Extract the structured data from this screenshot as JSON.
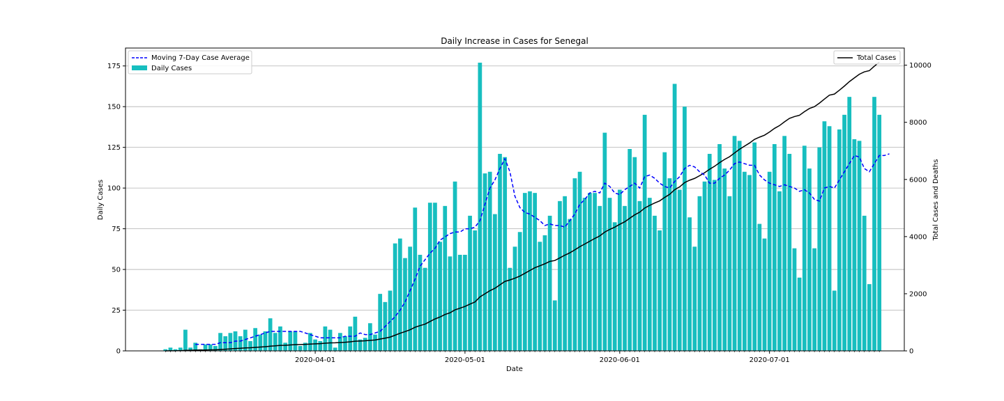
{
  "chart_data": {
    "type": "bar",
    "title": "Daily Increase in Cases for Senegal",
    "xlabel": "Date",
    "ylabel": "Daily Cases",
    "y2label": "Total Cases and Deaths",
    "ylim": [
      0,
      186
    ],
    "y2lim": [
      0,
      10600
    ],
    "yticks": [
      0,
      25,
      50,
      75,
      100,
      125,
      150,
      175
    ],
    "y2ticks": [
      0,
      2000,
      4000,
      6000,
      8000,
      10000
    ],
    "start_date": "2020-03-02",
    "xlim_days": [
      -8,
      148
    ],
    "date_ticks": [
      {
        "label": "2020-04-01",
        "day": 30
      },
      {
        "label": "2020-05-01",
        "day": 60
      },
      {
        "label": "2020-06-01",
        "day": 91
      },
      {
        "label": "2020-07-01",
        "day": 121
      }
    ],
    "grid": "horizontal",
    "legend_left": {
      "position": "top-left",
      "items": [
        "Moving 7-Day Case Average",
        "Daily Cases"
      ]
    },
    "legend_right": {
      "position": "top-right",
      "items": [
        "Total Cases"
      ]
    },
    "colors": {
      "bars": "#17bebf",
      "average": "#0000ff",
      "total": "#000000",
      "grid": "#b0b0b0"
    },
    "series": [
      {
        "name": "Daily Cases",
        "type": "bar",
        "axis": "left",
        "values": [
          1,
          2,
          1,
          2,
          13,
          2,
          5,
          1,
          4,
          4,
          3,
          11,
          9,
          11,
          12,
          9,
          13,
          6,
          14,
          10,
          12,
          20,
          11,
          15,
          5,
          12,
          12,
          3,
          5,
          11,
          7,
          6,
          15,
          13,
          2,
          11,
          9,
          15,
          21,
          7,
          8,
          17,
          10,
          35,
          30,
          37,
          66,
          69,
          57,
          64,
          88,
          59,
          51,
          91,
          91,
          67,
          89,
          58,
          104,
          59,
          59,
          83,
          74,
          177,
          109,
          110,
          84,
          121,
          119,
          51,
          64,
          73,
          97,
          98,
          97,
          67,
          71,
          83,
          31,
          92,
          95,
          81,
          106,
          110,
          94,
          97,
          97,
          89,
          134,
          94,
          79,
          99,
          89,
          124,
          119,
          92,
          145,
          94,
          83,
          74,
          122,
          106,
          164,
          99,
          150,
          82,
          64,
          95,
          104,
          121,
          105,
          127,
          112,
          95,
          132,
          129,
          110,
          108,
          128,
          78,
          69,
          110,
          127,
          98,
          132,
          121,
          63,
          45,
          126,
          112,
          63,
          125,
          141,
          138,
          37,
          136,
          145,
          156,
          130,
          129,
          83,
          41,
          156,
          145
        ]
      },
      {
        "name": "Moving 7-Day Case Average",
        "type": "line",
        "axis": "left",
        "style": "dashed",
        "values": [
          null,
          null,
          null,
          null,
          null,
          null,
          4,
          4,
          4,
          4,
          4,
          5,
          5,
          5,
          6,
          6,
          7,
          8,
          9,
          10,
          11,
          12,
          12,
          12,
          12,
          12,
          12,
          12,
          11,
          10,
          9,
          8,
          8,
          8,
          8,
          8,
          9,
          9,
          9,
          11,
          10,
          10,
          11,
          12,
          15,
          18,
          21,
          25,
          30,
          37,
          44,
          52,
          56,
          60,
          63,
          68,
          70,
          72,
          73,
          73,
          75,
          75,
          76,
          80,
          90,
          100,
          105,
          112,
          118,
          110,
          95,
          88,
          85,
          84,
          82,
          80,
          77,
          78,
          77,
          77,
          76,
          80,
          84,
          90,
          93,
          97,
          98,
          97,
          103,
          101,
          97,
          96,
          99,
          101,
          103,
          100,
          107,
          108,
          106,
          103,
          101,
          100,
          104,
          107,
          112,
          114,
          113,
          110,
          108,
          103,
          103,
          106,
          108,
          111,
          115,
          116,
          115,
          114,
          114,
          108,
          105,
          103,
          102,
          101,
          102,
          101,
          100,
          98,
          99,
          97,
          93,
          92,
          100,
          101,
          100,
          105,
          110,
          115,
          120,
          119,
          112,
          110,
          115,
          120,
          120,
          121
        ]
      },
      {
        "name": "Total Cases",
        "type": "line",
        "axis": "right",
        "values": [
          1,
          3,
          4,
          6,
          19,
          21,
          26,
          27,
          31,
          35,
          38,
          49,
          58,
          69,
          81,
          90,
          103,
          109,
          123,
          133,
          145,
          165,
          176,
          191,
          196,
          208,
          220,
          223,
          228,
          239,
          246,
          252,
          267,
          280,
          282,
          293,
          302,
          317,
          338,
          345,
          353,
          370,
          380,
          415,
          445,
          482,
          548,
          617,
          674,
          738,
          826,
          885,
          936,
          1027,
          1118,
          1185,
          1274,
          1332,
          1436,
          1495,
          1554,
          1637,
          1711,
          1888,
          1997,
          2107,
          2191,
          2312,
          2431,
          2482,
          2546,
          2619,
          2716,
          2814,
          2911,
          2978,
          3049,
          3132,
          3163,
          3255,
          3350,
          3431,
          3537,
          3647,
          3741,
          3838,
          3935,
          4024,
          4158,
          4252,
          4331,
          4430,
          4519,
          4643,
          4762,
          4854,
          4999,
          5093,
          5176,
          5250,
          5372,
          5478,
          5642,
          5741,
          5891,
          5973,
          6037,
          6132,
          6236,
          6357,
          6462,
          6589,
          6701,
          6796,
          6928,
          7057,
          7167,
          7275,
          7403,
          7481,
          7550,
          7660,
          7787,
          7885,
          8017,
          8138,
          8201,
          8246,
          8372,
          8484,
          8547,
          8672,
          8813,
          8951,
          8988,
          9124,
          9269,
          9425,
          9555,
          9684,
          9767,
          9808,
          9964,
          10109
        ]
      }
    ]
  }
}
